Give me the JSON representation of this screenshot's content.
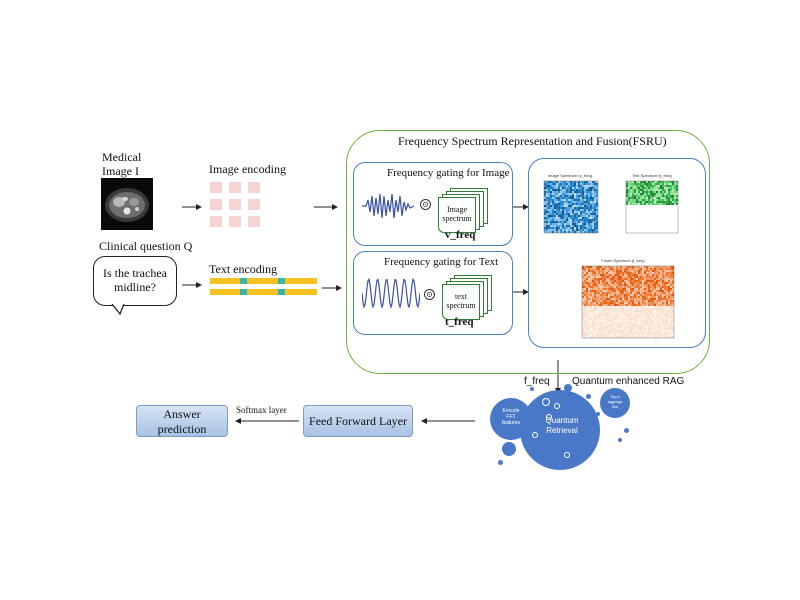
{
  "inputs": {
    "medical_image_label_line1": "Medical",
    "medical_image_label_line2": "Image I",
    "clinical_question_label": "Clinical question Q",
    "question_line1": "Is the trachea",
    "question_line2": "midline?"
  },
  "encodings": {
    "image_encoding": "Image encoding",
    "text_encoding": "Text encoding"
  },
  "fsru": {
    "title": "Frequency Spectrum Representation and Fusion(FSRU)",
    "image_gating_title": "Frequency gating for Image",
    "text_gating_title": "Frequency gating for Text",
    "image_spectrum_line1": "Image",
    "image_spectrum_line2": "spectrum",
    "text_spectrum_line1": "text",
    "text_spectrum_line2": "spectrum",
    "v_freq": "v_freq",
    "t_freq": "t_freq",
    "odot_symbol": "⊙",
    "image_heatmap_title": "Image Spectrum (v_freq)",
    "text_heatmap_title": "Text Spectrum (t_freq)",
    "fused_heatmap_title": "Fused Spectrum (f_freq)"
  },
  "rag": {
    "f_freq": "f_freq",
    "label": "Quantum enhanced RAG",
    "encode_line1": "Encode",
    "encode_line2": "FFT",
    "encode_line3": "features",
    "retrieval_line1": "Quantum",
    "retrieval_line2": "Retrieval",
    "topk_line1": "Top-k",
    "topk_line2": "aggrega",
    "topk_line3": "tion"
  },
  "output": {
    "feed_forward": "Feed Forward Layer",
    "softmax": "Softmax layer",
    "answer_line1": "Answer",
    "answer_line2": "prediction"
  },
  "colors": {
    "fsru_border": "#6db33f",
    "inner_border": "#4a7fc1",
    "bubble_blue": "#4a78c8",
    "wave_blue": "#3b4fa8",
    "encoding_yellow": "#f7c21f",
    "encoding_teal": "#33b5b5",
    "encoding_pink": "#f6d4d4"
  }
}
